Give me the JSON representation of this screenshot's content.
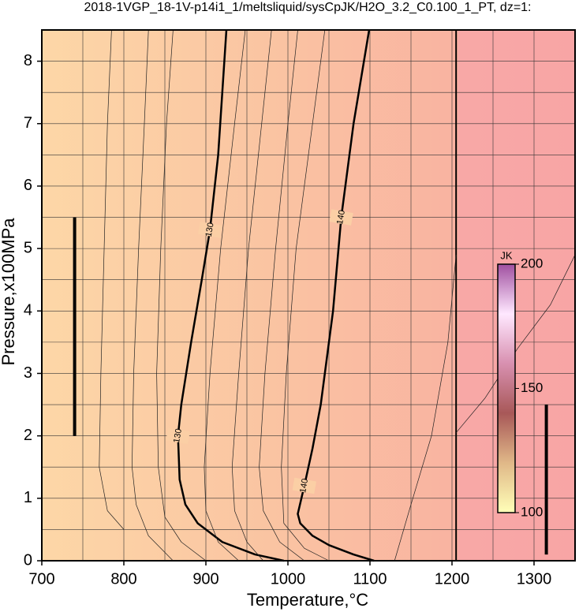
{
  "chart_data": {
    "type": "contour",
    "title": "2018-1VGP_18-1V-p14i1_1/meltsliquid/sysCpJK/H2O_3.2_C0.100_1_PT, dz=1:",
    "x_label": "Temperature,°C",
    "y_label": "Pressure,x100MPa",
    "xlim": [
      700,
      1350
    ],
    "ylim": [
      0,
      8.5
    ],
    "xticks": [
      700,
      800,
      900,
      1000,
      1100,
      1200,
      1300
    ],
    "yticks": [
      0,
      1,
      2,
      3,
      4,
      5,
      6,
      7,
      8
    ],
    "xgrid": [
      750,
      800,
      850,
      900,
      950,
      1000,
      1050,
      1100,
      1150,
      1200,
      1250,
      1300
    ],
    "ygrid": [
      0.5,
      1,
      1.5,
      2,
      2.5,
      3,
      3.5,
      4,
      4.5,
      5,
      5.5,
      6,
      6.5,
      7,
      7.5,
      8
    ],
    "series": [
      {
        "name": "130",
        "color": "#000000",
        "width": 2.5,
        "x": [
          995,
          960,
          920,
          890,
          875,
          868,
          866,
          870,
          882,
          895,
          905,
          915,
          920,
          925
        ],
        "y": [
          0,
          0.1,
          0.3,
          0.6,
          0.9,
          1.3,
          2.0,
          2.5,
          3.5,
          4.5,
          5.3,
          6.5,
          7.5,
          8.5
        ]
      },
      {
        "name": "140",
        "color": "#000000",
        "width": 2.5,
        "x": [
          1105,
          1080,
          1050,
          1030,
          1015,
          1012,
          1020,
          1030,
          1040,
          1055,
          1065,
          1080,
          1099
        ],
        "y": [
          0,
          0.1,
          0.25,
          0.4,
          0.6,
          0.75,
          1.2,
          1.8,
          2.5,
          4,
          5.5,
          7,
          8.5
        ]
      },
      {
        "color": "#000000",
        "width": 2,
        "x": [
          1205,
          1205
        ],
        "y": [
          0,
          8.5
        ]
      },
      {
        "color": "#222222",
        "width": 0.7,
        "x": [
          940,
          915,
          900,
          898,
          905,
          918,
          935,
          948
        ],
        "y": [
          0,
          0.3,
          0.8,
          1.5,
          3,
          5,
          7,
          8.5
        ]
      },
      {
        "color": "#222222",
        "width": 0.7,
        "x": [
          970,
          950,
          935,
          932,
          940,
          952,
          968,
          980
        ],
        "y": [
          0,
          0.3,
          0.8,
          1.5,
          3,
          5,
          7,
          8.5
        ]
      },
      {
        "color": "#222222",
        "width": 0.7,
        "x": [
          1020,
          990,
          970,
          965,
          972,
          985,
          1000,
          1012
        ],
        "y": [
          0,
          0.3,
          0.8,
          1.5,
          3,
          5,
          7,
          8.5
        ]
      },
      {
        "color": "#222222",
        "width": 0.7,
        "x": [
          1050,
          1020,
          995,
          992,
          998,
          1010,
          1030,
          1045
        ],
        "y": [
          0,
          0.2,
          0.6,
          1.5,
          3,
          5,
          7,
          8.5
        ]
      },
      {
        "color": "#222222",
        "width": 0.7,
        "x": [
          900,
          870,
          850,
          842,
          840,
          845,
          852,
          860
        ],
        "y": [
          0,
          0.3,
          0.7,
          1.5,
          3,
          5,
          7,
          8.5
        ]
      },
      {
        "color": "#222222",
        "width": 0.7,
        "x": [
          860,
          830,
          815,
          810,
          812,
          818,
          825,
          830
        ],
        "y": [
          0,
          0.4,
          0.9,
          1.5,
          3,
          5,
          7,
          8.5
        ]
      },
      {
        "color": "#222222",
        "width": 0.7,
        "x": [
          800,
          780,
          770,
          772,
          776,
          780,
          785
        ],
        "y": [
          0.5,
          0.8,
          1.5,
          3,
          5,
          7,
          8.5
        ]
      },
      {
        "color": "#222222",
        "width": 0.7,
        "x": [
          1205,
          1240,
          1280,
          1320,
          1350
        ],
        "y": [
          2.05,
          2.6,
          3.4,
          4.1,
          4.9
        ]
      },
      {
        "color": "#222222",
        "width": 0.7,
        "x": [
          1130,
          1150,
          1175,
          1195,
          1205
        ],
        "y": [
          0,
          0.9,
          2.0,
          3.5,
          4.9
        ]
      },
      {
        "color": "#000000",
        "width": 4,
        "x": [
          740,
          740,
          740
        ],
        "y": [
          2.0,
          3.6,
          5.5
        ]
      },
      {
        "color": "#000000",
        "width": 4,
        "x": [
          1315,
          1315,
          1315
        ],
        "y": [
          0.1,
          1.2,
          2.5
        ]
      }
    ],
    "colorbar": {
      "label": "JK",
      "lim": [
        100,
        200
      ],
      "ticks": [
        100,
        150,
        200
      ],
      "colors": [
        "#ffffb8",
        "#e0b888",
        "#a85858",
        "#d890b0",
        "#ffe8ff",
        "#a050a0"
      ]
    }
  }
}
